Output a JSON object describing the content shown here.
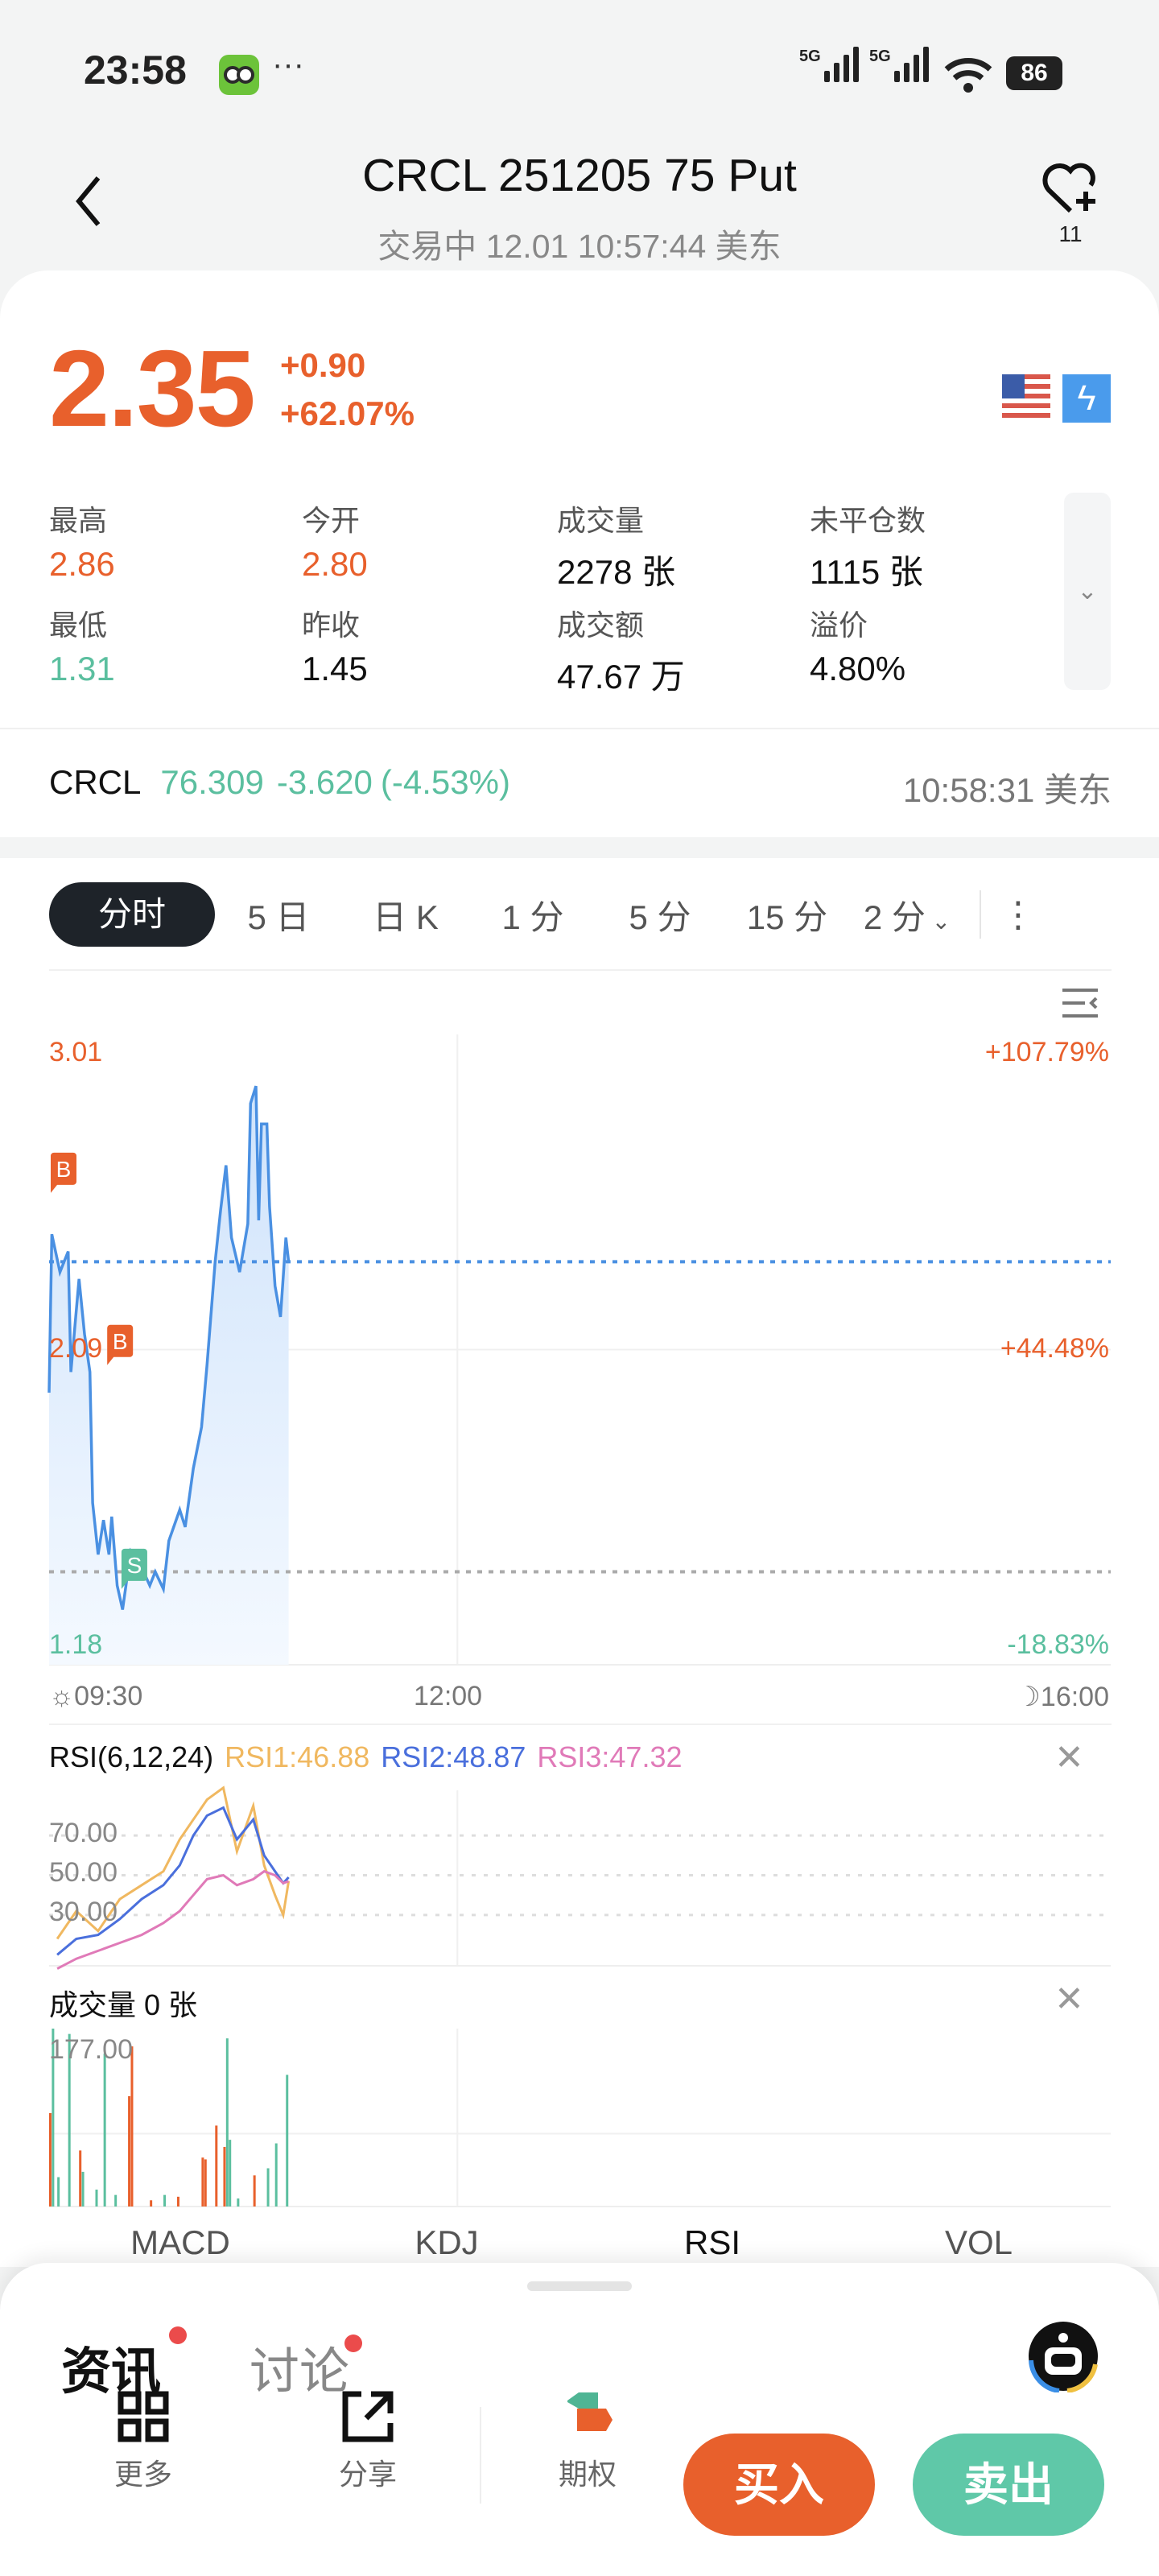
{
  "status_bar": {
    "time": "23:58",
    "app_icon": "duolingo-owl-icon",
    "more": "···",
    "network1": "5G",
    "network2": "5G",
    "battery": "86"
  },
  "header": {
    "title": "CRCL 251205 75 Put",
    "subtitle": "交易中 12.01 10:57:44 美东",
    "watchlist_count": "11"
  },
  "quote": {
    "price": "2.35",
    "change": "+0.90",
    "change_pct": "+62.07%",
    "market_flag": "us-flag-icon",
    "realtime_icon": "lightning-icon"
  },
  "stats": [
    {
      "label": "最高",
      "value": "2.86",
      "color": "#e8602c"
    },
    {
      "label": "今开",
      "value": "2.80",
      "color": "#e8602c"
    },
    {
      "label": "成交量",
      "value": "2278 张",
      "color": "#111111"
    },
    {
      "label": "未平仓数",
      "value": "1115 张",
      "color": "#111111"
    },
    {
      "label": "最低",
      "value": "1.31",
      "color": "#5bbf9f"
    },
    {
      "label": "昨收",
      "value": "1.45",
      "color": "#111111"
    },
    {
      "label": "成交额",
      "value": "47.67 万",
      "color": "#111111"
    },
    {
      "label": "溢价",
      "value": "4.80%",
      "color": "#111111"
    }
  ],
  "underlying": {
    "symbol": "CRCL",
    "price": "76.309",
    "change": "-3.620",
    "change_pct": "(-4.53%)",
    "time": "10:58:31 美东"
  },
  "chart_tabs": [
    "分时",
    "5 日",
    "日 K",
    "1 分",
    "5 分",
    "15 分",
    "2 分"
  ],
  "colors": {
    "up": "#e8602c",
    "down": "#5bbf9f",
    "line": "#4a90e2",
    "rsi1": "#f0b860",
    "rsi2": "#4a6fdc",
    "rsi3": "#e07ab8"
  },
  "chart_data": [
    {
      "type": "line",
      "x_labels": [
        "09:30",
        "12:00",
        "16:00"
      ],
      "x_range": [
        "09:30",
        "16:00"
      ],
      "ylim": [
        1.18,
        3.01
      ],
      "y_labels_left": [
        "3.01",
        "2.09",
        "1.18"
      ],
      "y_labels_right": [
        "+107.79%",
        "+44.48%",
        "-18.83%"
      ],
      "current_price_line": 2.35,
      "prev_close_line": 1.45,
      "markers": [
        {
          "label": "B",
          "time": "09:30",
          "price": 2.55
        },
        {
          "label": "B",
          "time": "09:41",
          "price": 2.05
        },
        {
          "label": "S",
          "time": "09:56",
          "price": 1.4
        }
      ],
      "series": [
        {
          "points": [
            [
              "09:30",
              1.97
            ],
            [
              "09:31",
              2.43
            ],
            [
              "09:34",
              2.32
            ],
            [
              "09:37",
              2.38
            ],
            [
              "09:38",
              2.03
            ],
            [
              "09:41",
              2.3
            ],
            [
              "09:43",
              2.14
            ],
            [
              "09:45",
              2.03
            ],
            [
              "09:46",
              1.65
            ],
            [
              "09:48",
              1.5
            ],
            [
              "09:50",
              1.6
            ],
            [
              "09:52",
              1.5
            ],
            [
              "09:53",
              1.61
            ],
            [
              "09:55",
              1.41
            ],
            [
              "09:57",
              1.34
            ],
            [
              "10:00",
              1.51
            ],
            [
              "10:03",
              1.48
            ],
            [
              "10:07",
              1.41
            ],
            [
              "10:09",
              1.45
            ],
            [
              "10:12",
              1.4
            ],
            [
              "10:14",
              1.54
            ],
            [
              "10:18",
              1.63
            ],
            [
              "10:20",
              1.58
            ],
            [
              "10:23",
              1.75
            ],
            [
              "10:26",
              1.87
            ],
            [
              "10:28",
              2.05
            ],
            [
              "10:31",
              2.35
            ],
            [
              "10:33",
              2.5
            ],
            [
              "10:35",
              2.63
            ],
            [
              "10:37",
              2.42
            ],
            [
              "10:40",
              2.32
            ],
            [
              "10:43",
              2.46
            ],
            [
              "10:44",
              2.81
            ],
            [
              "10:46",
              2.86
            ],
            [
              "10:47",
              2.47
            ],
            [
              "10:48",
              2.75
            ],
            [
              "10:50",
              2.75
            ],
            [
              "10:51",
              2.51
            ],
            [
              "10:53",
              2.28
            ],
            [
              "10:55",
              2.19
            ],
            [
              "10:57",
              2.42
            ],
            [
              "10:58",
              2.35
            ]
          ]
        }
      ]
    },
    {
      "type": "line",
      "title": "RSI(6,12,24)",
      "y_labels": [
        "70.00",
        "50.00",
        "30.00"
      ],
      "ylim": [
        0,
        100
      ],
      "times": [
        "09:33",
        "09:40",
        "09:48",
        "09:56",
        "10:04",
        "10:12",
        "10:18",
        "10:23",
        "10:28",
        "10:34",
        "10:39",
        "10:45",
        "10:49",
        "10:53",
        "10:56",
        "10:58"
      ],
      "series": [
        {
          "name": "RSI1:46.88",
          "values": [
            18,
            32,
            22,
            38,
            45,
            52,
            68,
            78,
            88,
            94,
            62,
            85,
            55,
            40,
            30,
            47
          ]
        },
        {
          "name": "RSI2:48.87",
          "values": [
            10,
            18,
            20,
            28,
            38,
            45,
            55,
            70,
            80,
            84,
            68,
            78,
            60,
            52,
            46,
            49
          ]
        },
        {
          "name": "RSI3:47.32",
          "values": [
            3,
            8,
            12,
            16,
            20,
            26,
            32,
            40,
            48,
            50,
            45,
            48,
            52,
            50,
            46,
            47
          ]
        }
      ]
    },
    {
      "type": "bar",
      "title": "成交量 0 张",
      "y_label": "177.00",
      "ylim": [
        0,
        200
      ],
      "bars": [
        [
          "09:30",
          105,
          "up"
        ],
        [
          "09:31",
          200,
          "down"
        ],
        [
          "09:33",
          33,
          "down"
        ],
        [
          "09:37",
          194,
          "down"
        ],
        [
          "09:41",
          63,
          "up"
        ],
        [
          "09:42",
          39,
          "down"
        ],
        [
          "09:47",
          19,
          "down"
        ],
        [
          "09:50",
          172,
          "down"
        ],
        [
          "09:54",
          13,
          "down"
        ],
        [
          "09:59",
          124,
          "up"
        ],
        [
          "10:00",
          180,
          "up"
        ],
        [
          "10:07",
          7,
          "up"
        ],
        [
          "10:12",
          13,
          "down"
        ],
        [
          "10:17",
          11,
          "up"
        ],
        [
          "10:26",
          55,
          "up"
        ],
        [
          "10:27",
          53,
          "up"
        ],
        [
          "10:31",
          91,
          "up"
        ],
        [
          "10:34",
          67,
          "up"
        ],
        [
          "10:35",
          189,
          "down"
        ],
        [
          "10:36",
          75,
          "down"
        ],
        [
          "10:39",
          9,
          "down"
        ],
        [
          "10:45",
          35,
          "up"
        ],
        [
          "10:50",
          43,
          "down"
        ],
        [
          "10:53",
          71,
          "down"
        ],
        [
          "10:57",
          148,
          "down"
        ]
      ]
    }
  ],
  "indicator_tabs": [
    "MACD",
    "KDJ",
    "RSI",
    "VOL"
  ],
  "bottom": {
    "tabs": [
      "资讯",
      "讨论"
    ],
    "actions": [
      "更多",
      "分享",
      "期权"
    ],
    "buy": "买入",
    "sell": "卖出"
  }
}
